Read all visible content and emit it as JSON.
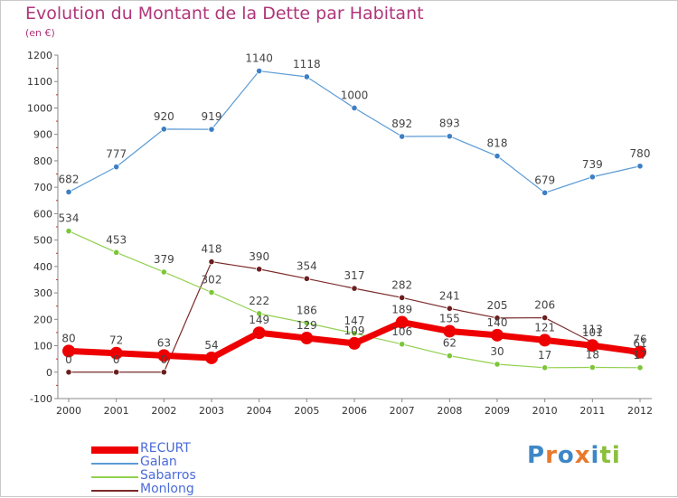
{
  "chart_data": {
    "type": "line",
    "title": "Evolution du Montant de la Dette par Habitant",
    "subtitle": "(en €)",
    "xlabel": "",
    "ylabel": "",
    "x": [
      "2000",
      "2001",
      "2002",
      "2003",
      "2004",
      "2005",
      "2006",
      "2007",
      "2008",
      "2009",
      "2010",
      "2011",
      "2012"
    ],
    "ylim": [
      -100,
      1200
    ],
    "yticks": [
      -100,
      0,
      100,
      200,
      300,
      400,
      500,
      600,
      700,
      800,
      900,
      1000,
      1100,
      1200
    ],
    "grid": false,
    "legend_position": "bottom-left",
    "series": [
      {
        "name": "RECURT",
        "color": "#ee0000",
        "values": [
          80,
          72,
          63,
          54,
          149,
          129,
          109,
          189,
          155,
          140,
          121,
          101,
          76
        ]
      },
      {
        "name": "Galan",
        "color": "#5b9bd5",
        "values": [
          682,
          777,
          920,
          919,
          1140,
          1118,
          1000,
          892,
          893,
          818,
          679,
          739,
          780
        ]
      },
      {
        "name": "Sabarros",
        "color": "#92d050",
        "values": [
          534,
          453,
          379,
          302,
          222,
          186,
          147,
          106,
          62,
          30,
          17,
          18,
          17
        ]
      },
      {
        "name": "Monlong",
        "color": "#7b2a2a",
        "values": [
          0,
          0,
          0,
          418,
          390,
          354,
          317,
          282,
          241,
          205,
          206,
          113,
          61
        ]
      }
    ]
  },
  "brand": {
    "letters": [
      "P",
      "r",
      "o",
      "x",
      "i",
      "t",
      "i"
    ],
    "colors": [
      "#3d87c8",
      "#e8792c",
      "#3d87c8",
      "#e8792c",
      "#3d87c8",
      "#8bbf3c",
      "#8bbf3c"
    ]
  }
}
